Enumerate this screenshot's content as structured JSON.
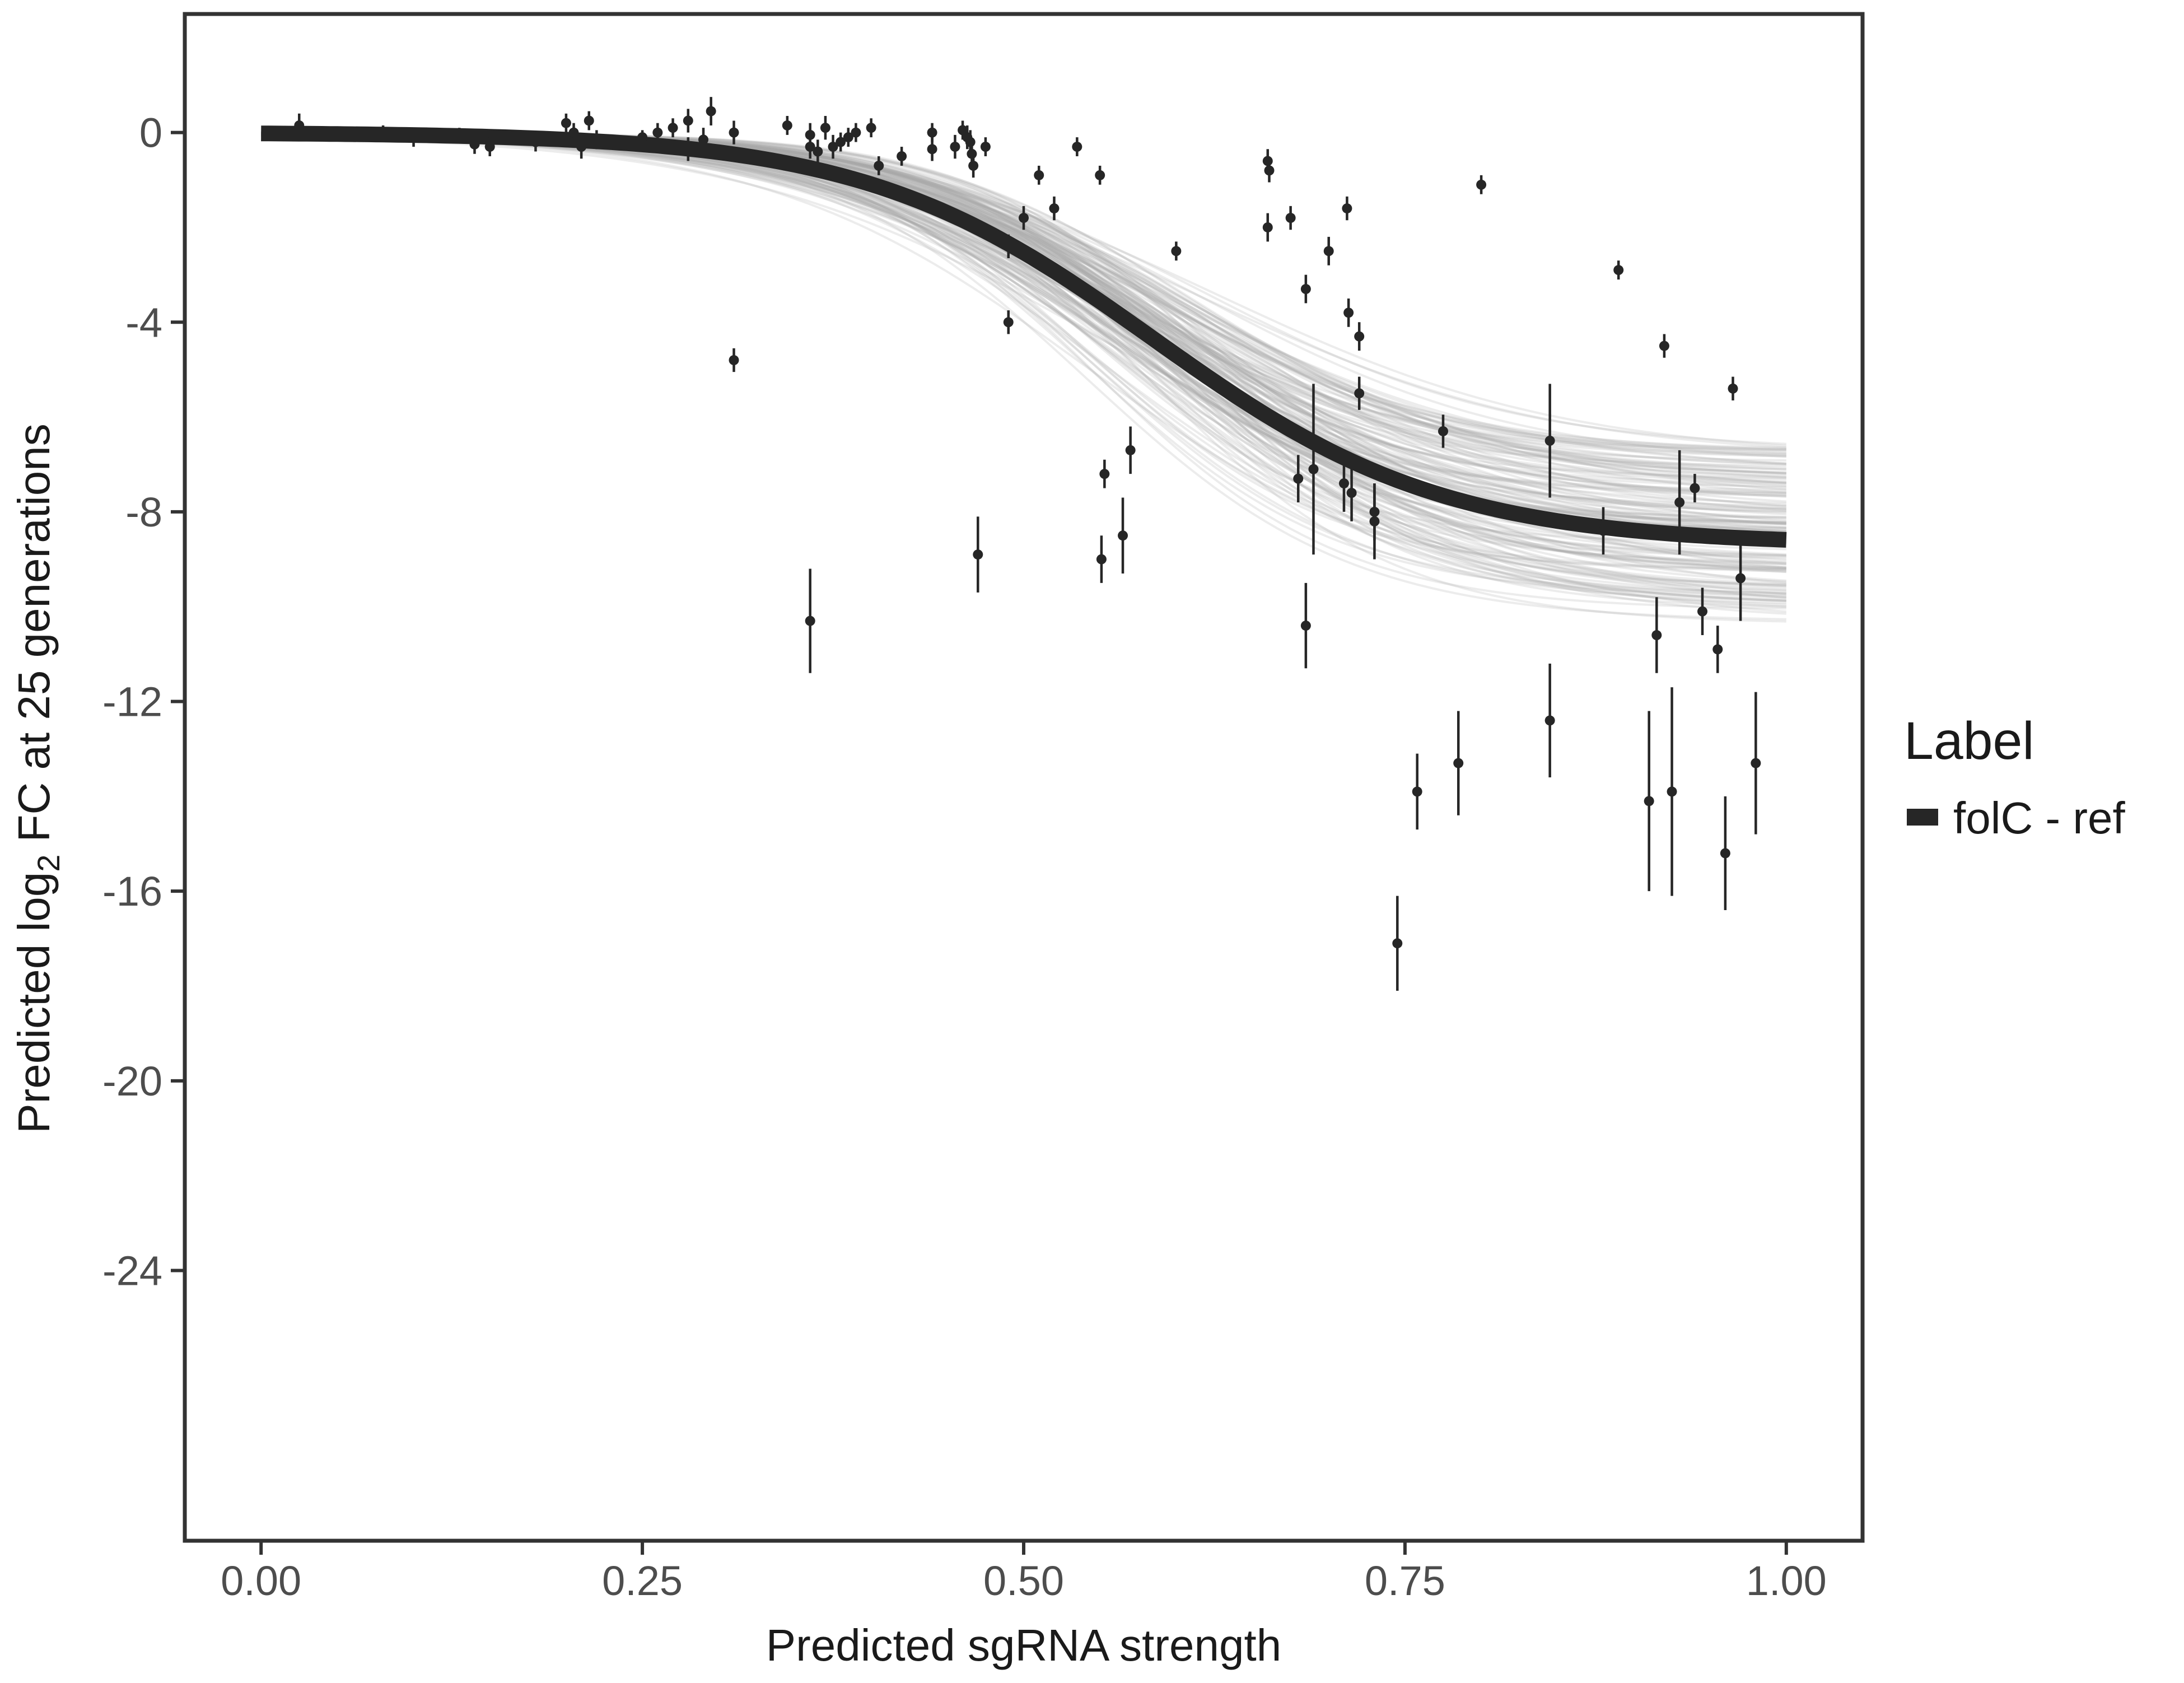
{
  "chart_data": {
    "type": "scatter",
    "title": "",
    "xlabel": "Predicted sgRNA strength",
    "ylabel": {
      "prefix": "Predicted  log",
      "subscript": "2",
      "suffix": " FC at 25 generations"
    },
    "xlim": [
      -0.05,
      1.05
    ],
    "ylim": [
      -29.7,
      2.5
    ],
    "x_ticks": [
      0,
      0.25,
      0.5,
      0.75,
      1
    ],
    "x_tick_labels": [
      "0.00",
      "0.25",
      "0.50",
      "0.75",
      "1.00"
    ],
    "y_ticks": [
      0,
      -4,
      -8,
      -12,
      -16,
      -20,
      -24
    ],
    "y_tick_labels": [
      "0",
      "-4",
      "-8",
      "-12",
      "-16",
      "-20",
      "-24"
    ],
    "grid": false,
    "legend": {
      "title": "Label",
      "position": "right",
      "items": [
        {
          "label": "folC - ref",
          "color": "#262626"
        }
      ]
    },
    "fit": {
      "model": "logistic",
      "upper": 0.0,
      "lower": -8.7,
      "midpoint": 0.585,
      "slope": 10.5,
      "color": "#262626"
    },
    "posterior_band": {
      "draws": 160,
      "color": "#a9a9a9",
      "midpoint_range": [
        0.54,
        0.63
      ],
      "slope_range": [
        8.5,
        13.0
      ],
      "lower_range": [
        -10.4,
        -6.7
      ]
    },
    "series": [
      {
        "name": "folC - ref",
        "color": "#262626",
        "points": [
          {
            "x": 0.025,
            "y": 0.15,
            "err": 0.25
          },
          {
            "x": 0.08,
            "y": 0.0,
            "err": 0.15
          },
          {
            "x": 0.1,
            "y": -0.1,
            "err": 0.2
          },
          {
            "x": 0.13,
            "y": -0.05,
            "err": 0.15
          },
          {
            "x": 0.14,
            "y": -0.25,
            "err": 0.2
          },
          {
            "x": 0.15,
            "y": -0.3,
            "err": 0.2
          },
          {
            "x": 0.18,
            "y": -0.2,
            "err": 0.2
          },
          {
            "x": 0.2,
            "y": 0.2,
            "err": 0.2
          },
          {
            "x": 0.205,
            "y": 0.0,
            "err": 0.2
          },
          {
            "x": 0.21,
            "y": -0.3,
            "err": 0.25
          },
          {
            "x": 0.215,
            "y": 0.25,
            "err": 0.2
          },
          {
            "x": 0.22,
            "y": -0.15,
            "err": 0.2
          },
          {
            "x": 0.25,
            "y": -0.1,
            "err": 0.15
          },
          {
            "x": 0.26,
            "y": 0.0,
            "err": 0.2
          },
          {
            "x": 0.27,
            "y": 0.1,
            "err": 0.2
          },
          {
            "x": 0.28,
            "y": 0.25,
            "err": 0.25
          },
          {
            "x": 0.28,
            "y": -0.35,
            "err": 0.25
          },
          {
            "x": 0.29,
            "y": -0.15,
            "err": 0.25
          },
          {
            "x": 0.295,
            "y": 0.45,
            "err": 0.3
          },
          {
            "x": 0.31,
            "y": 0.0,
            "err": 0.25
          },
          {
            "x": 0.31,
            "y": -4.8,
            "err": 0.25
          },
          {
            "x": 0.345,
            "y": 0.15,
            "err": 0.2
          },
          {
            "x": 0.36,
            "y": -0.05,
            "err": 0.25
          },
          {
            "x": 0.36,
            "y": -0.3,
            "err": 0.25
          },
          {
            "x": 0.365,
            "y": -0.4,
            "err": 0.25
          },
          {
            "x": 0.37,
            "y": 0.1,
            "err": 0.25
          },
          {
            "x": 0.375,
            "y": -0.3,
            "err": 0.25
          },
          {
            "x": 0.38,
            "y": -0.2,
            "err": 0.2
          },
          {
            "x": 0.385,
            "y": -0.1,
            "err": 0.2
          },
          {
            "x": 0.39,
            "y": 0.0,
            "err": 0.2
          },
          {
            "x": 0.4,
            "y": 0.1,
            "err": 0.2
          },
          {
            "x": 0.405,
            "y": -0.7,
            "err": 0.2
          },
          {
            "x": 0.42,
            "y": -0.5,
            "err": 0.2
          },
          {
            "x": 0.44,
            "y": 0.0,
            "err": 0.2
          },
          {
            "x": 0.44,
            "y": -0.35,
            "err": 0.25
          },
          {
            "x": 0.455,
            "y": -0.3,
            "err": 0.25
          },
          {
            "x": 0.46,
            "y": 0.05,
            "err": 0.2
          },
          {
            "x": 0.463,
            "y": -0.1,
            "err": 0.25
          },
          {
            "x": 0.465,
            "y": -0.2,
            "err": 0.25
          },
          {
            "x": 0.466,
            "y": -0.45,
            "err": 0.25
          },
          {
            "x": 0.467,
            "y": -0.7,
            "err": 0.25
          },
          {
            "x": 0.475,
            "y": -0.3,
            "err": 0.2
          },
          {
            "x": 0.49,
            "y": -2.4,
            "err": 0.25
          },
          {
            "x": 0.49,
            "y": -4.0,
            "err": 0.25
          },
          {
            "x": 0.5,
            "y": -1.8,
            "err": 0.25
          },
          {
            "x": 0.51,
            "y": -0.9,
            "err": 0.2
          },
          {
            "x": 0.52,
            "y": -1.6,
            "err": 0.25
          },
          {
            "x": 0.535,
            "y": -0.3,
            "err": 0.2
          },
          {
            "x": 0.55,
            "y": -0.9,
            "err": 0.2
          },
          {
            "x": 0.6,
            "y": -2.5,
            "err": 0.2
          },
          {
            "x": 0.36,
            "y": -10.3,
            "err": 1.1
          },
          {
            "x": 0.47,
            "y": -8.9,
            "err": 0.8
          },
          {
            "x": 0.553,
            "y": -7.2,
            "err": 0.3
          },
          {
            "x": 0.551,
            "y": -9.0,
            "err": 0.5
          },
          {
            "x": 0.565,
            "y": -8.5,
            "err": 0.8
          },
          {
            "x": 0.57,
            "y": -6.7,
            "err": 0.5
          },
          {
            "x": 0.66,
            "y": -0.6,
            "err": 0.25
          },
          {
            "x": 0.661,
            "y": -0.8,
            "err": 0.25
          },
          {
            "x": 0.66,
            "y": -2.0,
            "err": 0.3
          },
          {
            "x": 0.675,
            "y": -1.8,
            "err": 0.25
          },
          {
            "x": 0.685,
            "y": -3.3,
            "err": 0.3
          },
          {
            "x": 0.7,
            "y": -2.5,
            "err": 0.3
          },
          {
            "x": 0.712,
            "y": -1.6,
            "err": 0.25
          },
          {
            "x": 0.713,
            "y": -3.8,
            "err": 0.3
          },
          {
            "x": 0.72,
            "y": -4.3,
            "err": 0.3
          },
          {
            "x": 0.72,
            "y": -5.5,
            "err": 0.35
          },
          {
            "x": 0.68,
            "y": -7.3,
            "err": 0.5
          },
          {
            "x": 0.69,
            "y": -7.1,
            "err": 1.8
          },
          {
            "x": 0.71,
            "y": -7.4,
            "err": 0.6
          },
          {
            "x": 0.715,
            "y": -7.6,
            "err": 0.6
          },
          {
            "x": 0.73,
            "y": -8.0,
            "err": 0.6
          },
          {
            "x": 0.73,
            "y": -8.2,
            "err": 0.8
          },
          {
            "x": 0.685,
            "y": -10.4,
            "err": 0.9
          },
          {
            "x": 0.745,
            "y": -17.1,
            "err": 1.0
          },
          {
            "x": 0.758,
            "y": -13.9,
            "err": 0.8
          },
          {
            "x": 0.775,
            "y": -6.3,
            "err": 0.35
          },
          {
            "x": 0.785,
            "y": -13.3,
            "err": 1.1
          },
          {
            "x": 0.8,
            "y": -1.1,
            "err": 0.2
          },
          {
            "x": 0.845,
            "y": -6.5,
            "err": 1.2
          },
          {
            "x": 0.845,
            "y": -12.4,
            "err": 1.2
          },
          {
            "x": 0.88,
            "y": -8.4,
            "err": 0.5
          },
          {
            "x": 0.89,
            "y": -2.9,
            "err": 0.2
          },
          {
            "x": 0.91,
            "y": -14.1,
            "err": 1.9
          },
          {
            "x": 0.915,
            "y": -10.6,
            "err": 0.8
          },
          {
            "x": 0.92,
            "y": -4.5,
            "err": 0.25
          },
          {
            "x": 0.925,
            "y": -13.9,
            "err": 2.2
          },
          {
            "x": 0.93,
            "y": -7.8,
            "err": 1.1
          },
          {
            "x": 0.94,
            "y": -7.5,
            "err": 0.3
          },
          {
            "x": 0.945,
            "y": -10.1,
            "err": 0.5
          },
          {
            "x": 0.955,
            "y": -10.9,
            "err": 0.5
          },
          {
            "x": 0.96,
            "y": -15.2,
            "err": 1.2
          },
          {
            "x": 0.965,
            "y": -5.4,
            "err": 0.25
          },
          {
            "x": 0.97,
            "y": -9.4,
            "err": 0.9
          },
          {
            "x": 0.98,
            "y": -13.3,
            "err": 1.5
          }
        ]
      }
    ]
  }
}
